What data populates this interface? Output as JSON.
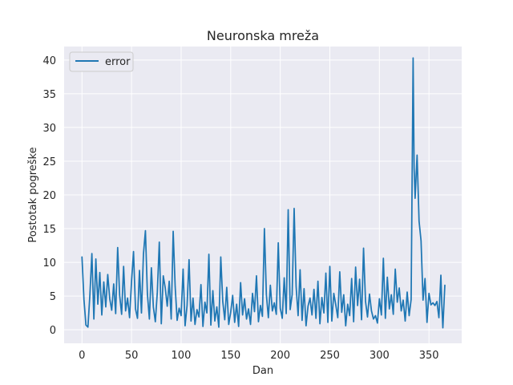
{
  "colors": {
    "plot_background": "#eaeaf2",
    "grid": "#ffffff",
    "series": "#1f77b4"
  },
  "chart_data": {
    "type": "line",
    "title": "Neuronska mreža",
    "xlabel": "Dan",
    "ylabel": "Postotak pogreške",
    "xlim": [
      -18,
      383
    ],
    "ylim": [
      -2,
      42
    ],
    "xticks": [
      0,
      50,
      100,
      150,
      200,
      250,
      300,
      350
    ],
    "yticks": [
      0,
      5,
      10,
      15,
      20,
      25,
      30,
      35,
      40
    ],
    "grid": true,
    "legend": "top-left",
    "series": [
      {
        "name": "error",
        "x": [
          0,
          2,
          4,
          6,
          8,
          10,
          12,
          14,
          16,
          18,
          20,
          22,
          24,
          26,
          28,
          30,
          32,
          34,
          36,
          38,
          40,
          42,
          44,
          46,
          48,
          50,
          52,
          54,
          56,
          58,
          60,
          62,
          64,
          66,
          68,
          70,
          72,
          74,
          76,
          78,
          80,
          82,
          84,
          86,
          88,
          90,
          92,
          94,
          96,
          98,
          100,
          102,
          104,
          106,
          108,
          110,
          112,
          114,
          116,
          118,
          120,
          122,
          124,
          126,
          128,
          130,
          132,
          134,
          136,
          138,
          140,
          142,
          144,
          146,
          148,
          150,
          152,
          154,
          156,
          158,
          160,
          162,
          164,
          166,
          168,
          170,
          172,
          174,
          176,
          178,
          180,
          182,
          184,
          186,
          188,
          190,
          192,
          194,
          196,
          198,
          200,
          202,
          204,
          206,
          208,
          210,
          212,
          214,
          216,
          218,
          220,
          222,
          224,
          226,
          228,
          230,
          232,
          234,
          236,
          238,
          240,
          242,
          244,
          246,
          248,
          250,
          252,
          254,
          256,
          258,
          260,
          262,
          264,
          266,
          268,
          270,
          272,
          274,
          276,
          278,
          280,
          282,
          284,
          286,
          288,
          290,
          292,
          294,
          296,
          298,
          300,
          302,
          304,
          306,
          308,
          310,
          312,
          314,
          316,
          318,
          320,
          322,
          324,
          326,
          328,
          330,
          332,
          334,
          335,
          336,
          338,
          340,
          342,
          344,
          346,
          348,
          350,
          352,
          354,
          356,
          358,
          360,
          362,
          363,
          364,
          366
        ],
        "values": [
          10.8,
          4.5,
          0.7,
          0.4,
          5.2,
          11.3,
          1.6,
          10.5,
          3.8,
          8.5,
          2.2,
          7.1,
          3.4,
          8.2,
          4.6,
          2.9,
          6.8,
          2.4,
          12.2,
          5.1,
          2.3,
          9.4,
          2.8,
          4.7,
          1.8,
          7.2,
          11.6,
          3.1,
          1.7,
          8.8,
          2.5,
          11.2,
          14.7,
          5.3,
          1.6,
          9.2,
          3.4,
          1.2,
          5.6,
          13.0,
          0.9,
          8.0,
          6.2,
          3.5,
          7.2,
          1.6,
          14.6,
          6.4,
          1.4,
          3.2,
          2.1,
          9.0,
          0.6,
          3.6,
          10.4,
          1.3,
          4.7,
          0.8,
          3.0,
          1.9,
          6.7,
          0.5,
          4.1,
          2.5,
          11.2,
          0.7,
          5.8,
          1.3,
          3.4,
          0.4,
          10.8,
          4.2,
          1.5,
          6.3,
          0.8,
          2.6,
          5.1,
          1.1,
          3.8,
          0.5,
          7.0,
          2.2,
          4.6,
          1.6,
          3.1,
          0.8,
          5.4,
          2.7,
          8.0,
          1.2,
          3.6,
          2.0,
          15.0,
          5.2,
          1.8,
          6.6,
          2.8,
          4.0,
          2.3,
          12.9,
          3.2,
          1.7,
          7.7,
          2.4,
          17.8,
          3.0,
          5.2,
          18.0,
          6.4,
          2.1,
          8.9,
          1.4,
          6.1,
          0.6,
          3.5,
          4.7,
          2.2,
          6.0,
          1.7,
          7.2,
          0.9,
          4.8,
          2.5,
          8.4,
          1.1,
          9.4,
          1.3,
          5.4,
          3.7,
          1.8,
          8.6,
          2.6,
          5.2,
          0.6,
          3.8,
          2.1,
          7.6,
          1.2,
          9.3,
          3.6,
          7.5,
          1.5,
          12.1,
          4.2,
          1.9,
          5.3,
          2.8,
          1.6,
          2.1,
          1.0,
          4.6,
          2.2,
          10.6,
          1.7,
          7.8,
          3.1,
          5.2,
          2.3,
          9.0,
          4.1,
          6.2,
          2.8,
          4.4,
          1.3,
          5.6,
          2.1,
          4.5,
          40.3,
          24.0,
          19.5,
          25.9,
          16.1,
          13.2,
          4.4,
          7.6,
          1.1,
          5.4,
          3.7,
          4.0,
          3.6,
          4.2,
          1.8,
          8.1,
          3.5,
          0.3,
          6.6
        ]
      }
    ]
  }
}
